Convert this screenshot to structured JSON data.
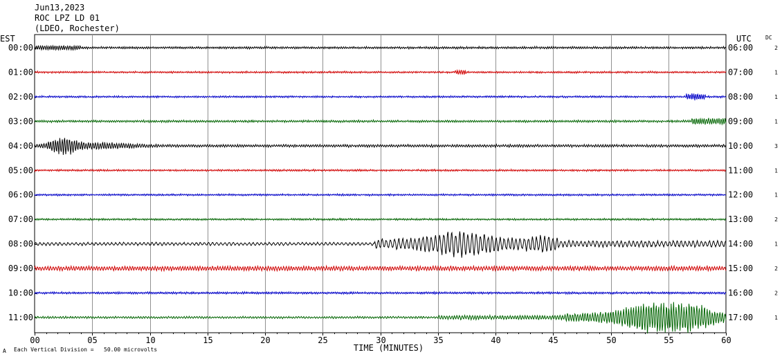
{
  "header": {
    "date": "Jun13,2023",
    "station": "ROC LPZ LD 01",
    "network": "(LDEO, Rochester)"
  },
  "left_axis_title": "EST",
  "right_axis_title": "UTC",
  "dc_title": "DC",
  "xlabel": "TIME (MINUTES)",
  "scale_note": "Each Vertical Division =   50.00 microvolts",
  "corner_mark": "A",
  "chart_data": {
    "type": "line",
    "xlim": [
      0,
      60
    ],
    "x_ticks": [
      "00",
      "05",
      "10",
      "15",
      "20",
      "25",
      "30",
      "35",
      "40",
      "45",
      "50",
      "55",
      "60"
    ],
    "grid": true,
    "rows": [
      {
        "est": "00:00",
        "utc": "06:00",
        "dc": "2",
        "color": "#000000"
      },
      {
        "est": "01:00",
        "utc": "07:00",
        "dc": "1",
        "color": "#d00000"
      },
      {
        "est": "02:00",
        "utc": "08:00",
        "dc": "1",
        "color": "#0000c8"
      },
      {
        "est": "03:00",
        "utc": "09:00",
        "dc": "1",
        "color": "#006400"
      },
      {
        "est": "04:00",
        "utc": "10:00",
        "dc": "3",
        "color": "#000000"
      },
      {
        "est": "05:00",
        "utc": "11:00",
        "dc": "1",
        "color": "#d00000"
      },
      {
        "est": "06:00",
        "utc": "12:00",
        "dc": "1",
        "color": "#0000c8"
      },
      {
        "est": "07:00",
        "utc": "13:00",
        "dc": "2",
        "color": "#006400"
      },
      {
        "est": "08:00",
        "utc": "14:00",
        "dc": "1",
        "color": "#000000"
      },
      {
        "est": "09:00",
        "utc": "15:00",
        "dc": "2",
        "color": "#d00000"
      },
      {
        "est": "10:00",
        "utc": "16:00",
        "dc": "2",
        "color": "#0000c8"
      },
      {
        "est": "11:00",
        "utc": "17:00",
        "dc": "1",
        "color": "#006400"
      }
    ]
  }
}
